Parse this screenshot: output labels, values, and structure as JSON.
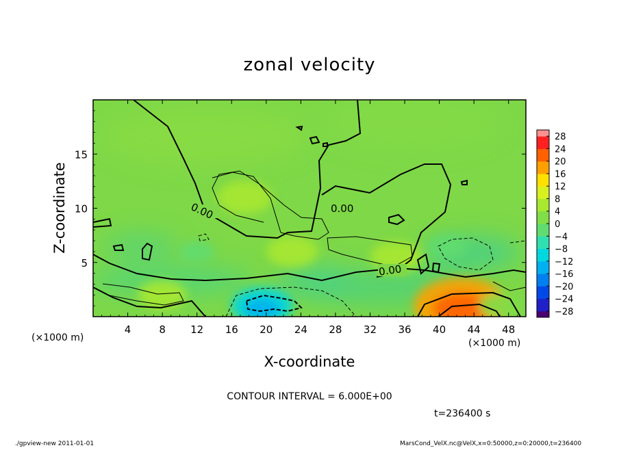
{
  "chart_data": {
    "type": "heatmap",
    "title": "zonal velocity",
    "xlabel": "X-coordinate",
    "ylabel": "Z-coordinate",
    "x_unit_note_left": "(×1000 m)",
    "x_unit_note_right": "(×1000 m)",
    "xlim": [
      0,
      50
    ],
    "ylim": [
      0,
      20
    ],
    "x_ticks": [
      4,
      8,
      12,
      16,
      20,
      24,
      28,
      32,
      36,
      40,
      44,
      48
    ],
    "y_ticks": [
      5,
      10,
      15
    ],
    "colorbar_ticks": [
      28,
      24,
      20,
      16,
      12,
      8,
      4,
      0,
      -4,
      -8,
      -12,
      -16,
      -20,
      -24,
      -28
    ],
    "colorbar_ticks_text": [
      "28",
      "24",
      "20",
      "16",
      "12",
      "8",
      "4",
      "0",
      "−4",
      "−8",
      "−12",
      "−16",
      "−20",
      "−24",
      "−28"
    ],
    "colorbar_range": [
      -30,
      30
    ],
    "contour_labels": [
      "0.00",
      "0.00",
      "0.00"
    ],
    "contour_interval_text": "CONTOUR INTERVAL = 6.000E+00",
    "time_text": "t=236400 s",
    "features": [
      {
        "x": 42.5,
        "z": 1.0,
        "value": 20
      },
      {
        "x": 19.5,
        "z": 1.0,
        "value": -10
      },
      {
        "x": 17.5,
        "z": 11.0,
        "value": 8
      },
      {
        "x": 23.0,
        "z": 6.0,
        "value": 7
      },
      {
        "x": 35.0,
        "z": 5.5,
        "value": 7
      },
      {
        "x": 8.0,
        "z": 2.0,
        "value": 6
      },
      {
        "x": 47.0,
        "z": 1.0,
        "value": 4
      },
      {
        "x": 41.0,
        "z": 6.5,
        "value": -3
      },
      {
        "x": 12.0,
        "z": 6.0,
        "value": -2
      }
    ]
  },
  "footer": {
    "left": "./gpview-new   2011-01-01",
    "right": "MarsCond_VelX.nc@VelX,x=0:50000,z=0:20000,t=236400"
  }
}
